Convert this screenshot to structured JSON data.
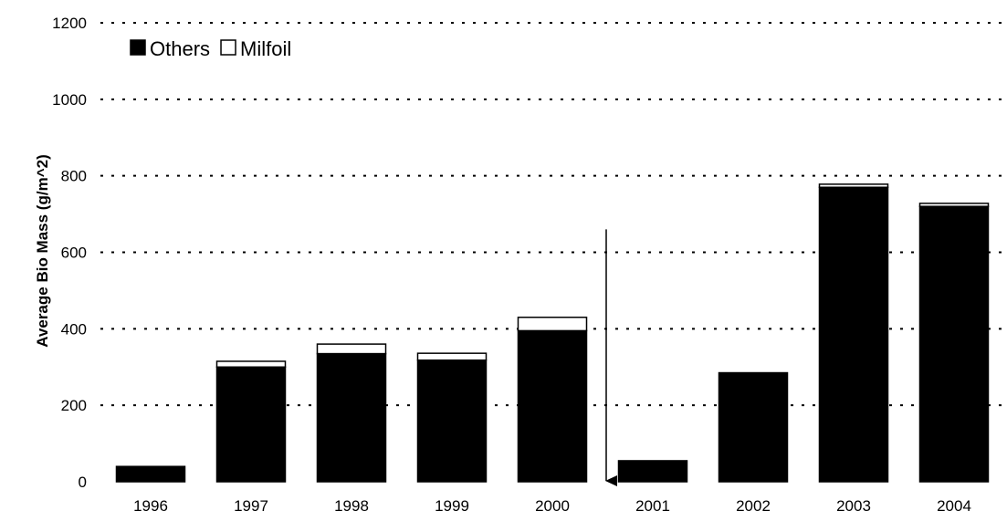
{
  "chart_data": {
    "type": "bar",
    "stacked": true,
    "categories": [
      "1996",
      "1997",
      "1998",
      "1999",
      "2000",
      "2001",
      "2002",
      "2003",
      "2004"
    ],
    "series": [
      {
        "name": "Others",
        "color": "#000000",
        "values": [
          40,
          300,
          335,
          318,
          395,
          55,
          285,
          770,
          720
        ]
      },
      {
        "name": "Milfoil",
        "color": "#ffffff",
        "values": [
          0,
          15,
          25,
          18,
          35,
          0,
          0,
          8,
          8
        ]
      }
    ],
    "xlabel": "",
    "ylabel": "Average Bio Mass (g/m^2)",
    "ylim": [
      0,
      1200
    ],
    "yticks": [
      0,
      200,
      400,
      600,
      800,
      1000,
      1200
    ],
    "grid": true,
    "legend_position": "top-left",
    "annotations": [
      {
        "type": "arrow",
        "direction": "down",
        "from_value": 660,
        "to_value": 0,
        "between": [
          "2000",
          "2001"
        ]
      }
    ]
  }
}
